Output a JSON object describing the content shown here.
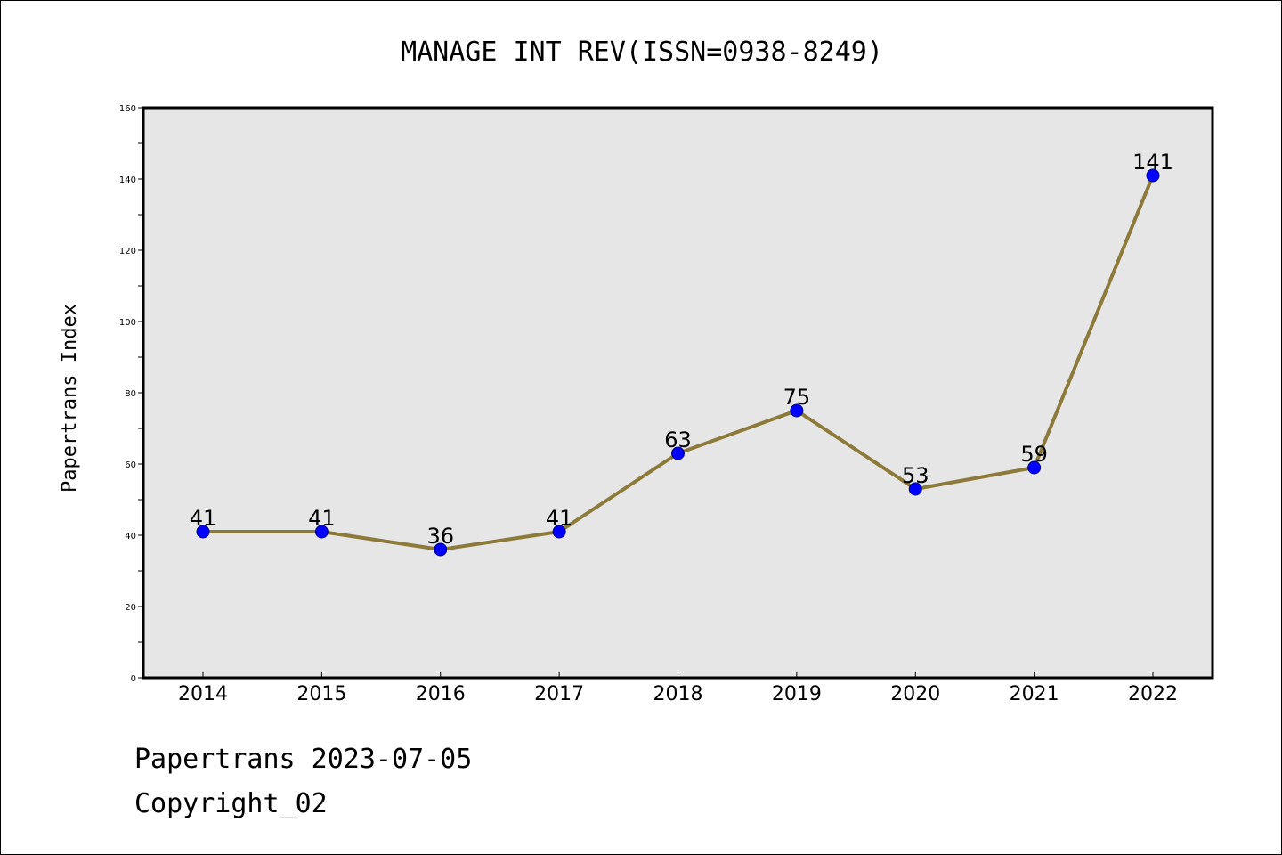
{
  "chart_data": {
    "type": "line",
    "title": "MANAGE INT REV(ISSN=0938-8249)",
    "xlabel": "",
    "ylabel": "Papertrans Index",
    "categories": [
      "2014",
      "2015",
      "2016",
      "2017",
      "2018",
      "2019",
      "2020",
      "2021",
      "2022"
    ],
    "series": [
      {
        "values": [
          41,
          41,
          36,
          41,
          63,
          75,
          53,
          59,
          141
        ]
      }
    ],
    "data_labels": [
      "41",
      "41",
      "36",
      "41",
      "63",
      "75",
      "53",
      "59",
      "141"
    ],
    "ylim": [
      0,
      160
    ],
    "yticks": [
      0,
      20,
      40,
      60,
      80,
      100,
      120,
      140,
      160
    ],
    "ytick_labels": [
      "0",
      "20",
      "40",
      "60",
      "80",
      "100",
      "120",
      "140",
      "160"
    ],
    "grid": false,
    "legend": "none",
    "colors": {
      "line": "#8c7a3a",
      "marker_fill": "#0000ff",
      "marker_edge": "#000080",
      "plot_background": "#e6e6e6"
    }
  },
  "footer": {
    "date_text": "Papertrans 2023-07-05",
    "copyright_text": "Copyright_02"
  }
}
